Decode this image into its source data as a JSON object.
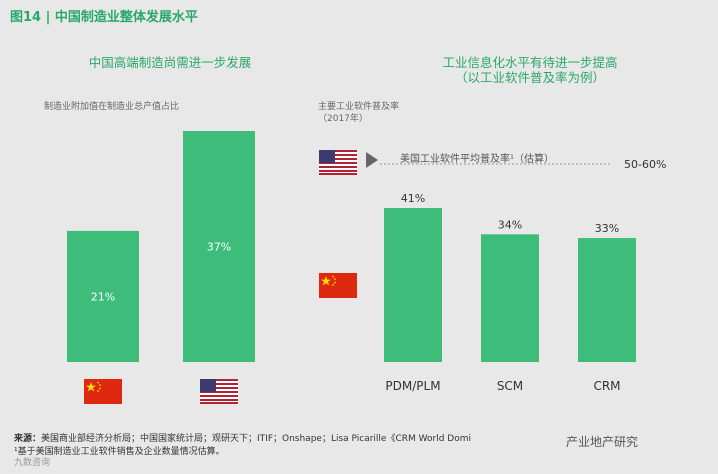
{
  "figure": {
    "title": "图14 | 中国制造业整体发展水平"
  },
  "left_panel": {
    "title": "中国高端制造尚需进一步发展",
    "subtitle": "制造业附加值在制造业总产值占比"
  },
  "right_panel": {
    "title_line1": "工业信息化水平有待进一步提高",
    "title_line2": "（以工业软件普及率为例）",
    "subtitle_line1": "主要工业软件普及率",
    "subtitle_line2": "（2017年）",
    "us_reference_label": "美国工业软件平均普及率¹（估算）",
    "us_reference_value": "50-60%"
  },
  "colors": {
    "bar": "#3dbc7a",
    "accent": "#2aa86a",
    "china_flag": "#de2910",
    "us_flag_blue": "#3c3b6e",
    "us_flag_red": "#b22234"
  },
  "icons": {
    "china": "china-flag-icon",
    "usa": "us-flag-icon",
    "arrow": "triangle-right-icon"
  },
  "chart_data": [
    {
      "type": "bar",
      "title": "中国高端制造尚需进一步发展",
      "ylabel": "制造业附加值在制造业总产值占比",
      "categories": [
        "China",
        "USA"
      ],
      "category_icons": [
        "china-flag-icon",
        "us-flag-icon"
      ],
      "values": [
        21,
        37
      ],
      "data_labels": [
        "21%",
        "37%"
      ],
      "ylim": [
        0,
        40
      ]
    },
    {
      "type": "bar",
      "title": "工业信息化水平有待进一步提高（以工业软件普及率为例）",
      "ylabel": "主要工业软件普及率（2017年）",
      "categories": [
        "PDM/PLM",
        "SCM",
        "CRM"
      ],
      "values": [
        41,
        34,
        33
      ],
      "data_labels": [
        "41%",
        "34%",
        "33%"
      ],
      "ylim": [
        0,
        60
      ],
      "reference": {
        "label": "美国工业软件平均普及率¹（估算）",
        "value_label": "50-60%",
        "range": [
          50,
          60
        ]
      }
    }
  ],
  "footer": {
    "source_label": "来源：",
    "source_text": "美国商业部经济分析局；中国国家统计局；观研天下；ITIF；Onshape；Lisa Picarille《CRM World Domi",
    "note": "¹基于美国制造业工业软件销售及企业数量情况估算。",
    "watermark_right": "产业地产研究",
    "watermark_left": "九数咨询"
  }
}
